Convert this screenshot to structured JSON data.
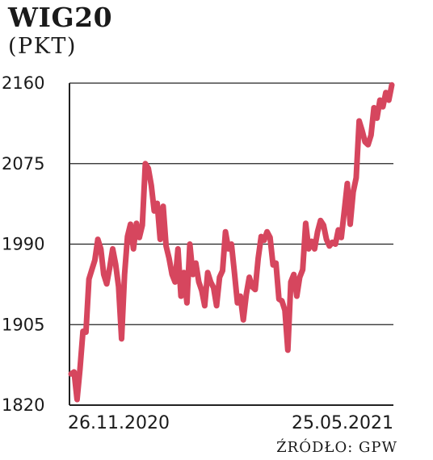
{
  "header": {
    "title": "WIG20",
    "subtitle": "(PKT)"
  },
  "footer": {
    "source": "ŹRÓDŁO: GPW"
  },
  "colors": {
    "line": "#d6465e",
    "grid": "#222222"
  },
  "chart_data": {
    "type": "line",
    "title": "WIG20",
    "ylabel": "(PKT)",
    "xlabel": "",
    "ylim": [
      1820,
      2160
    ],
    "yticks": [
      1820,
      1905,
      1990,
      2075,
      2160
    ],
    "ytick_labels": [
      "1820",
      "1905",
      "1990",
      "2075",
      "2160"
    ],
    "xtick_labels": [
      "26.11.2020",
      "25.05.2021"
    ],
    "grid": "horizontal",
    "legend": "none",
    "series": [
      {
        "values": [
          1853,
          1855,
          1826,
          1858,
          1898,
          1897,
          1953,
          1963,
          1973,
          1995,
          1985,
          1958,
          1948,
          1965,
          1985,
          1969,
          1945,
          1890,
          1958,
          1998,
          2011,
          1985,
          2012,
          1997,
          2010,
          2075,
          2070,
          2052,
          2025,
          2033,
          1995,
          2030,
          1988,
          1975,
          1958,
          1950,
          1985,
          1935,
          1960,
          1928,
          1990,
          1958,
          1970,
          1950,
          1941,
          1925,
          1960,
          1950,
          1944,
          1925,
          1955,
          1962,
          2003,
          1985,
          1990,
          1960,
          1928,
          1935,
          1910,
          1937,
          1955,
          1945,
          1942,
          1975,
          1998,
          1994,
          2003,
          1997,
          1968,
          1970,
          1932,
          1930,
          1920,
          1878,
          1950,
          1958,
          1935,
          1955,
          1963,
          2012,
          1985,
          1993,
          1985,
          2003,
          2015,
          2010,
          1995,
          1988,
          1992,
          1990,
          2005,
          1997,
          2025,
          2054,
          2011,
          2045,
          2060,
          2120,
          2110,
          2098,
          2095,
          2105,
          2134,
          2123,
          2142,
          2135,
          2150,
          2142,
          2158
        ]
      }
    ]
  }
}
